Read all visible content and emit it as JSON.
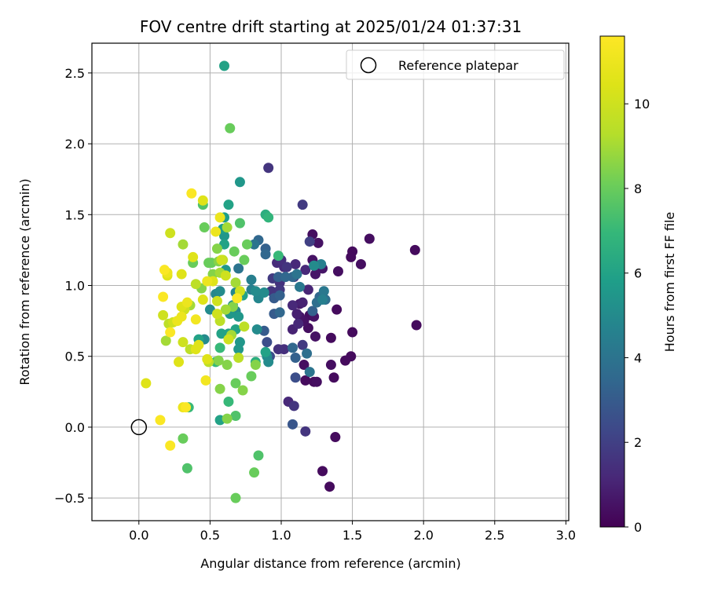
{
  "chart_data": {
    "type": "scatter",
    "title": "FOV centre drift starting at 2025/01/24 01:37:31",
    "xlabel": "Angular distance from reference (arcmin)",
    "ylabel": "Rotation from reference (arcmin)",
    "xlim": [
      -0.33,
      3.02
    ],
    "ylim": [
      -0.66,
      2.71
    ],
    "x_ticks": [
      0.0,
      0.5,
      1.0,
      1.5,
      2.0,
      2.5,
      3.0
    ],
    "x_tick_labels": [
      "0.0",
      "0.5",
      "1.0",
      "1.5",
      "2.0",
      "2.5",
      "3.0"
    ],
    "y_ticks": [
      -0.5,
      0.0,
      0.5,
      1.0,
      1.5,
      2.0,
      2.5
    ],
    "y_tick_labels": [
      "−0.5",
      "0.0",
      "0.5",
      "1.0",
      "1.5",
      "2.0",
      "2.5"
    ],
    "grid": true,
    "legend": {
      "position": "top-right",
      "entries": [
        {
          "label": "Reference platepar",
          "marker": "open-circle"
        }
      ]
    },
    "reference_point": {
      "x": 0.0,
      "y": 0.0
    },
    "colorbar": {
      "label": "Hours from first FF file",
      "range": [
        0,
        11.6
      ],
      "ticks": [
        0,
        2,
        4,
        6,
        8,
        10
      ],
      "tick_labels": [
        "0",
        "2",
        "4",
        "6",
        "8",
        "10"
      ],
      "colormap": "viridis"
    },
    "points": [
      [
        1.94,
        1.25,
        0.3
      ],
      [
        1.95,
        0.72,
        0.3
      ],
      [
        1.62,
        1.33,
        0.4
      ],
      [
        1.56,
        1.15,
        0.4
      ],
      [
        1.5,
        1.24,
        0.3
      ],
      [
        1.49,
        1.2,
        0.3
      ],
      [
        1.5,
        0.67,
        0.3
      ],
      [
        1.49,
        0.5,
        0.3
      ],
      [
        1.45,
        0.47,
        0.3
      ],
      [
        1.4,
        1.1,
        0.4
      ],
      [
        1.39,
        0.83,
        0.3
      ],
      [
        1.35,
        0.63,
        0.3
      ],
      [
        1.37,
        0.35,
        0.3
      ],
      [
        1.38,
        -0.07,
        0.3
      ],
      [
        1.29,
        -0.31,
        0.3
      ],
      [
        1.34,
        -0.42,
        0.3
      ],
      [
        1.35,
        0.44,
        0.4
      ],
      [
        1.29,
        1.12,
        0.6
      ],
      [
        1.26,
        1.3,
        0.5
      ],
      [
        1.22,
        1.36,
        0.4
      ],
      [
        1.24,
        1.08,
        0.6
      ],
      [
        1.22,
        1.18,
        0.5
      ],
      [
        1.24,
        0.64,
        0.5
      ],
      [
        1.2,
        0.79,
        0.4
      ],
      [
        1.23,
        0.78,
        0.5
      ],
      [
        1.19,
        0.7,
        0.4
      ],
      [
        1.16,
        0.44,
        0.4
      ],
      [
        1.17,
        0.33,
        0.3
      ],
      [
        1.23,
        0.32,
        0.3
      ],
      [
        1.25,
        0.32,
        0.4
      ],
      [
        1.16,
        0.75,
        0.5
      ],
      [
        1.13,
        0.78,
        0.6
      ],
      [
        1.13,
        0.87,
        0.8
      ],
      [
        1.15,
        0.88,
        1.0
      ],
      [
        1.11,
        0.8,
        0.9
      ],
      [
        1.08,
        0.86,
        1.2
      ],
      [
        1.08,
        0.69,
        1.0
      ],
      [
        1.12,
        0.73,
        1.2
      ],
      [
        1.19,
        0.97,
        1.1
      ],
      [
        1.17,
        1.11,
        1.2
      ],
      [
        1.09,
        1.06,
        1.4
      ],
      [
        1.1,
        1.15,
        1.2
      ],
      [
        1.04,
        1.13,
        1.6
      ],
      [
        1.02,
        1.13,
        1.3
      ],
      [
        1.0,
        1.18,
        1.4
      ],
      [
        0.97,
        1.16,
        1.3
      ],
      [
        0.94,
        1.05,
        1.8
      ],
      [
        0.99,
        1.02,
        1.5
      ],
      [
        0.93,
        0.96,
        1.6
      ],
      [
        0.99,
        0.97,
        1.7
      ],
      [
        1.02,
        0.55,
        1.4
      ],
      [
        0.98,
        0.55,
        1.5
      ],
      [
        1.05,
        0.18,
        1.2
      ],
      [
        1.09,
        0.15,
        1.6
      ],
      [
        1.17,
        -0.03,
        1.6
      ],
      [
        1.15,
        0.58,
        1.8
      ],
      [
        1.1,
        0.49,
        3.2
      ],
      [
        1.08,
        0.56,
        3.5
      ],
      [
        1.1,
        0.35,
        2.5
      ],
      [
        1.08,
        0.02,
        2.8
      ],
      [
        0.91,
        1.83,
        1.6
      ],
      [
        1.15,
        1.57,
        1.8
      ],
      [
        1.2,
        1.31,
        2.0
      ],
      [
        1.28,
        1.15,
        4.5
      ],
      [
        1.23,
        1.14,
        5.0
      ],
      [
        1.3,
        0.96,
        4.2
      ],
      [
        1.27,
        0.92,
        3.5
      ],
      [
        1.29,
        0.9,
        4.5
      ],
      [
        1.31,
        0.9,
        3.8
      ],
      [
        1.25,
        0.88,
        3.8
      ],
      [
        1.22,
        0.82,
        3.2
      ],
      [
        1.18,
        0.52,
        3.8
      ],
      [
        1.2,
        0.39,
        4.0
      ],
      [
        1.13,
        0.99,
        4.2
      ],
      [
        1.11,
        1.08,
        4.0
      ],
      [
        1.08,
        1.06,
        3.5
      ],
      [
        1.03,
        1.06,
        3.5
      ],
      [
        0.98,
        1.06,
        3.2
      ],
      [
        0.99,
        0.93,
        3.2
      ],
      [
        0.99,
        0.81,
        3.5
      ],
      [
        0.95,
        0.91,
        3.0
      ],
      [
        0.95,
        0.8,
        3.0
      ],
      [
        0.88,
        0.68,
        3.0
      ],
      [
        0.9,
        0.6,
        2.5
      ],
      [
        0.92,
        0.5,
        2.5
      ],
      [
        0.9,
        0.5,
        5.0
      ],
      [
        0.89,
        0.53,
        6.0
      ],
      [
        0.91,
        0.46,
        5.0
      ],
      [
        0.84,
        0.91,
        4.8
      ],
      [
        0.82,
        0.96,
        5.0
      ],
      [
        0.88,
        0.95,
        5.0
      ],
      [
        0.89,
        1.22,
        3.5
      ],
      [
        0.89,
        1.26,
        3.2
      ],
      [
        0.84,
        1.32,
        3.5
      ],
      [
        0.81,
        1.29,
        4.0
      ],
      [
        0.79,
        1.04,
        4.5
      ],
      [
        0.79,
        0.97,
        4.5
      ],
      [
        0.7,
        1.12,
        4.0
      ],
      [
        0.68,
        0.95,
        4.8
      ],
      [
        0.66,
        0.86,
        5.2
      ],
      [
        0.68,
        0.82,
        4.8
      ],
      [
        0.7,
        0.78,
        5.5
      ],
      [
        0.64,
        0.8,
        5.5
      ],
      [
        0.73,
        0.93,
        6.0
      ],
      [
        0.68,
        0.69,
        6.0
      ],
      [
        0.71,
        0.6,
        5.5
      ],
      [
        0.63,
        0.66,
        6.0
      ],
      [
        0.7,
        0.55,
        5.5
      ],
      [
        0.58,
        0.66,
        6.0
      ],
      [
        0.57,
        0.56,
        7.0
      ],
      [
        0.54,
        0.46,
        7.0
      ],
      [
        0.5,
        0.83,
        5.0
      ],
      [
        0.54,
        0.94,
        4.8
      ],
      [
        0.57,
        0.96,
        5.0
      ],
      [
        0.61,
        1.11,
        5.5
      ],
      [
        0.6,
        1.29,
        6.0
      ],
      [
        0.6,
        1.35,
        5.5
      ],
      [
        0.59,
        1.4,
        5.8
      ],
      [
        0.6,
        1.48,
        5.8
      ],
      [
        0.63,
        1.57,
        6.0
      ],
      [
        0.71,
        1.73,
        5.5
      ],
      [
        0.6,
        2.55,
        6.0
      ],
      [
        0.64,
        2.11,
        8.0
      ],
      [
        0.71,
        1.44,
        7.5
      ],
      [
        0.67,
        1.24,
        8.0
      ],
      [
        0.74,
        1.18,
        8.0
      ],
      [
        0.76,
        1.29,
        8.0
      ],
      [
        0.89,
        1.5,
        6.5
      ],
      [
        0.91,
        1.48,
        6.8
      ],
      [
        0.98,
        1.21,
        7.0
      ],
      [
        0.83,
        0.69,
        5.0
      ],
      [
        0.82,
        0.46,
        6.5
      ],
      [
        0.79,
        0.36,
        8.0
      ],
      [
        0.82,
        0.44,
        8.5
      ],
      [
        0.73,
        0.26,
        8.5
      ],
      [
        0.68,
        0.31,
        8.0
      ],
      [
        0.68,
        0.08,
        7.5
      ],
      [
        0.63,
        0.18,
        7.0
      ],
      [
        0.57,
        0.05,
        6.0
      ],
      [
        0.62,
        0.06,
        8.5
      ],
      [
        0.68,
        -0.5,
        8.0
      ],
      [
        0.84,
        -0.2,
        7.5
      ],
      [
        0.81,
        -0.32,
        8.0
      ],
      [
        0.31,
        -0.08,
        8.0
      ],
      [
        0.34,
        -0.29,
        7.5
      ],
      [
        0.35,
        0.14,
        7.0
      ],
      [
        0.31,
        0.14,
        11.0
      ],
      [
        0.33,
        0.14,
        11.5
      ],
      [
        0.15,
        0.05,
        11.5
      ],
      [
        0.22,
        -0.13,
        11.5
      ],
      [
        0.05,
        0.31,
        10.5
      ],
      [
        0.47,
        0.33,
        11.2
      ],
      [
        0.48,
        0.48,
        10.5
      ],
      [
        0.49,
        0.46,
        9.5
      ],
      [
        0.56,
        0.47,
        8.5
      ],
      [
        0.57,
        0.27,
        8.5
      ],
      [
        0.62,
        0.44,
        8.5
      ],
      [
        0.7,
        0.49,
        9.5
      ],
      [
        0.74,
        0.71,
        9.5
      ],
      [
        0.63,
        0.62,
        10.0
      ],
      [
        0.65,
        0.65,
        9.0
      ],
      [
        0.57,
        0.75,
        9.5
      ],
      [
        0.55,
        0.89,
        10.0
      ],
      [
        0.55,
        0.8,
        10.0
      ],
      [
        0.61,
        0.83,
        9.0
      ],
      [
        0.66,
        0.85,
        8.5
      ],
      [
        0.69,
        0.91,
        11.5
      ],
      [
        0.68,
        1.02,
        9.0
      ],
      [
        0.71,
        0.96,
        10.0
      ],
      [
        0.61,
        1.07,
        10.0
      ],
      [
        0.57,
        1.09,
        9.0
      ],
      [
        0.52,
        1.08,
        8.5
      ],
      [
        0.52,
        1.03,
        10.5
      ],
      [
        0.48,
        1.03,
        11.0
      ],
      [
        0.51,
        1.16,
        8.0
      ],
      [
        0.56,
        1.17,
        8.5
      ],
      [
        0.59,
        1.18,
        9.5
      ],
      [
        0.58,
        1.18,
        10.0
      ],
      [
        0.55,
        1.26,
        8.5
      ],
      [
        0.49,
        1.16,
        8.0
      ],
      [
        0.46,
        1.41,
        8.0
      ],
      [
        0.54,
        1.38,
        11.0
      ],
      [
        0.57,
        1.48,
        11.0
      ],
      [
        0.62,
        1.41,
        9.0
      ],
      [
        0.45,
        1.57,
        7.5
      ],
      [
        0.45,
        1.6,
        10.5
      ],
      [
        0.37,
        1.65,
        11.5
      ],
      [
        0.38,
        1.2,
        10.5
      ],
      [
        0.38,
        1.16,
        8.0
      ],
      [
        0.4,
        1.01,
        9.5
      ],
      [
        0.44,
        0.98,
        8.5
      ],
      [
        0.45,
        0.9,
        10.5
      ],
      [
        0.36,
        0.86,
        9.0
      ],
      [
        0.34,
        0.88,
        11.0
      ],
      [
        0.3,
        0.85,
        10.5
      ],
      [
        0.32,
        0.83,
        10.0
      ],
      [
        0.3,
        0.78,
        11.0
      ],
      [
        0.27,
        0.75,
        11.0
      ],
      [
        0.24,
        0.74,
        10.0
      ],
      [
        0.21,
        0.73,
        9.5
      ],
      [
        0.22,
        0.67,
        11.5
      ],
      [
        0.19,
        0.61,
        9.0
      ],
      [
        0.17,
        0.79,
        10.0
      ],
      [
        0.17,
        0.92,
        11.5
      ],
      [
        0.2,
        1.07,
        10.5
      ],
      [
        0.2,
        1.09,
        11.0
      ],
      [
        0.18,
        1.11,
        11.5
      ],
      [
        0.3,
        1.08,
        10.5
      ],
      [
        0.31,
        1.29,
        9.0
      ],
      [
        0.22,
        1.37,
        10.0
      ],
      [
        0.4,
        0.76,
        11.2
      ],
      [
        0.4,
        0.55,
        10.5
      ],
      [
        0.42,
        0.58,
        10.5
      ],
      [
        0.36,
        0.55,
        9.5
      ],
      [
        0.42,
        0.62,
        6.0
      ],
      [
        0.46,
        0.62,
        5.0
      ],
      [
        0.31,
        0.6,
        10.0
      ],
      [
        0.28,
        0.46,
        10.5
      ]
    ]
  }
}
